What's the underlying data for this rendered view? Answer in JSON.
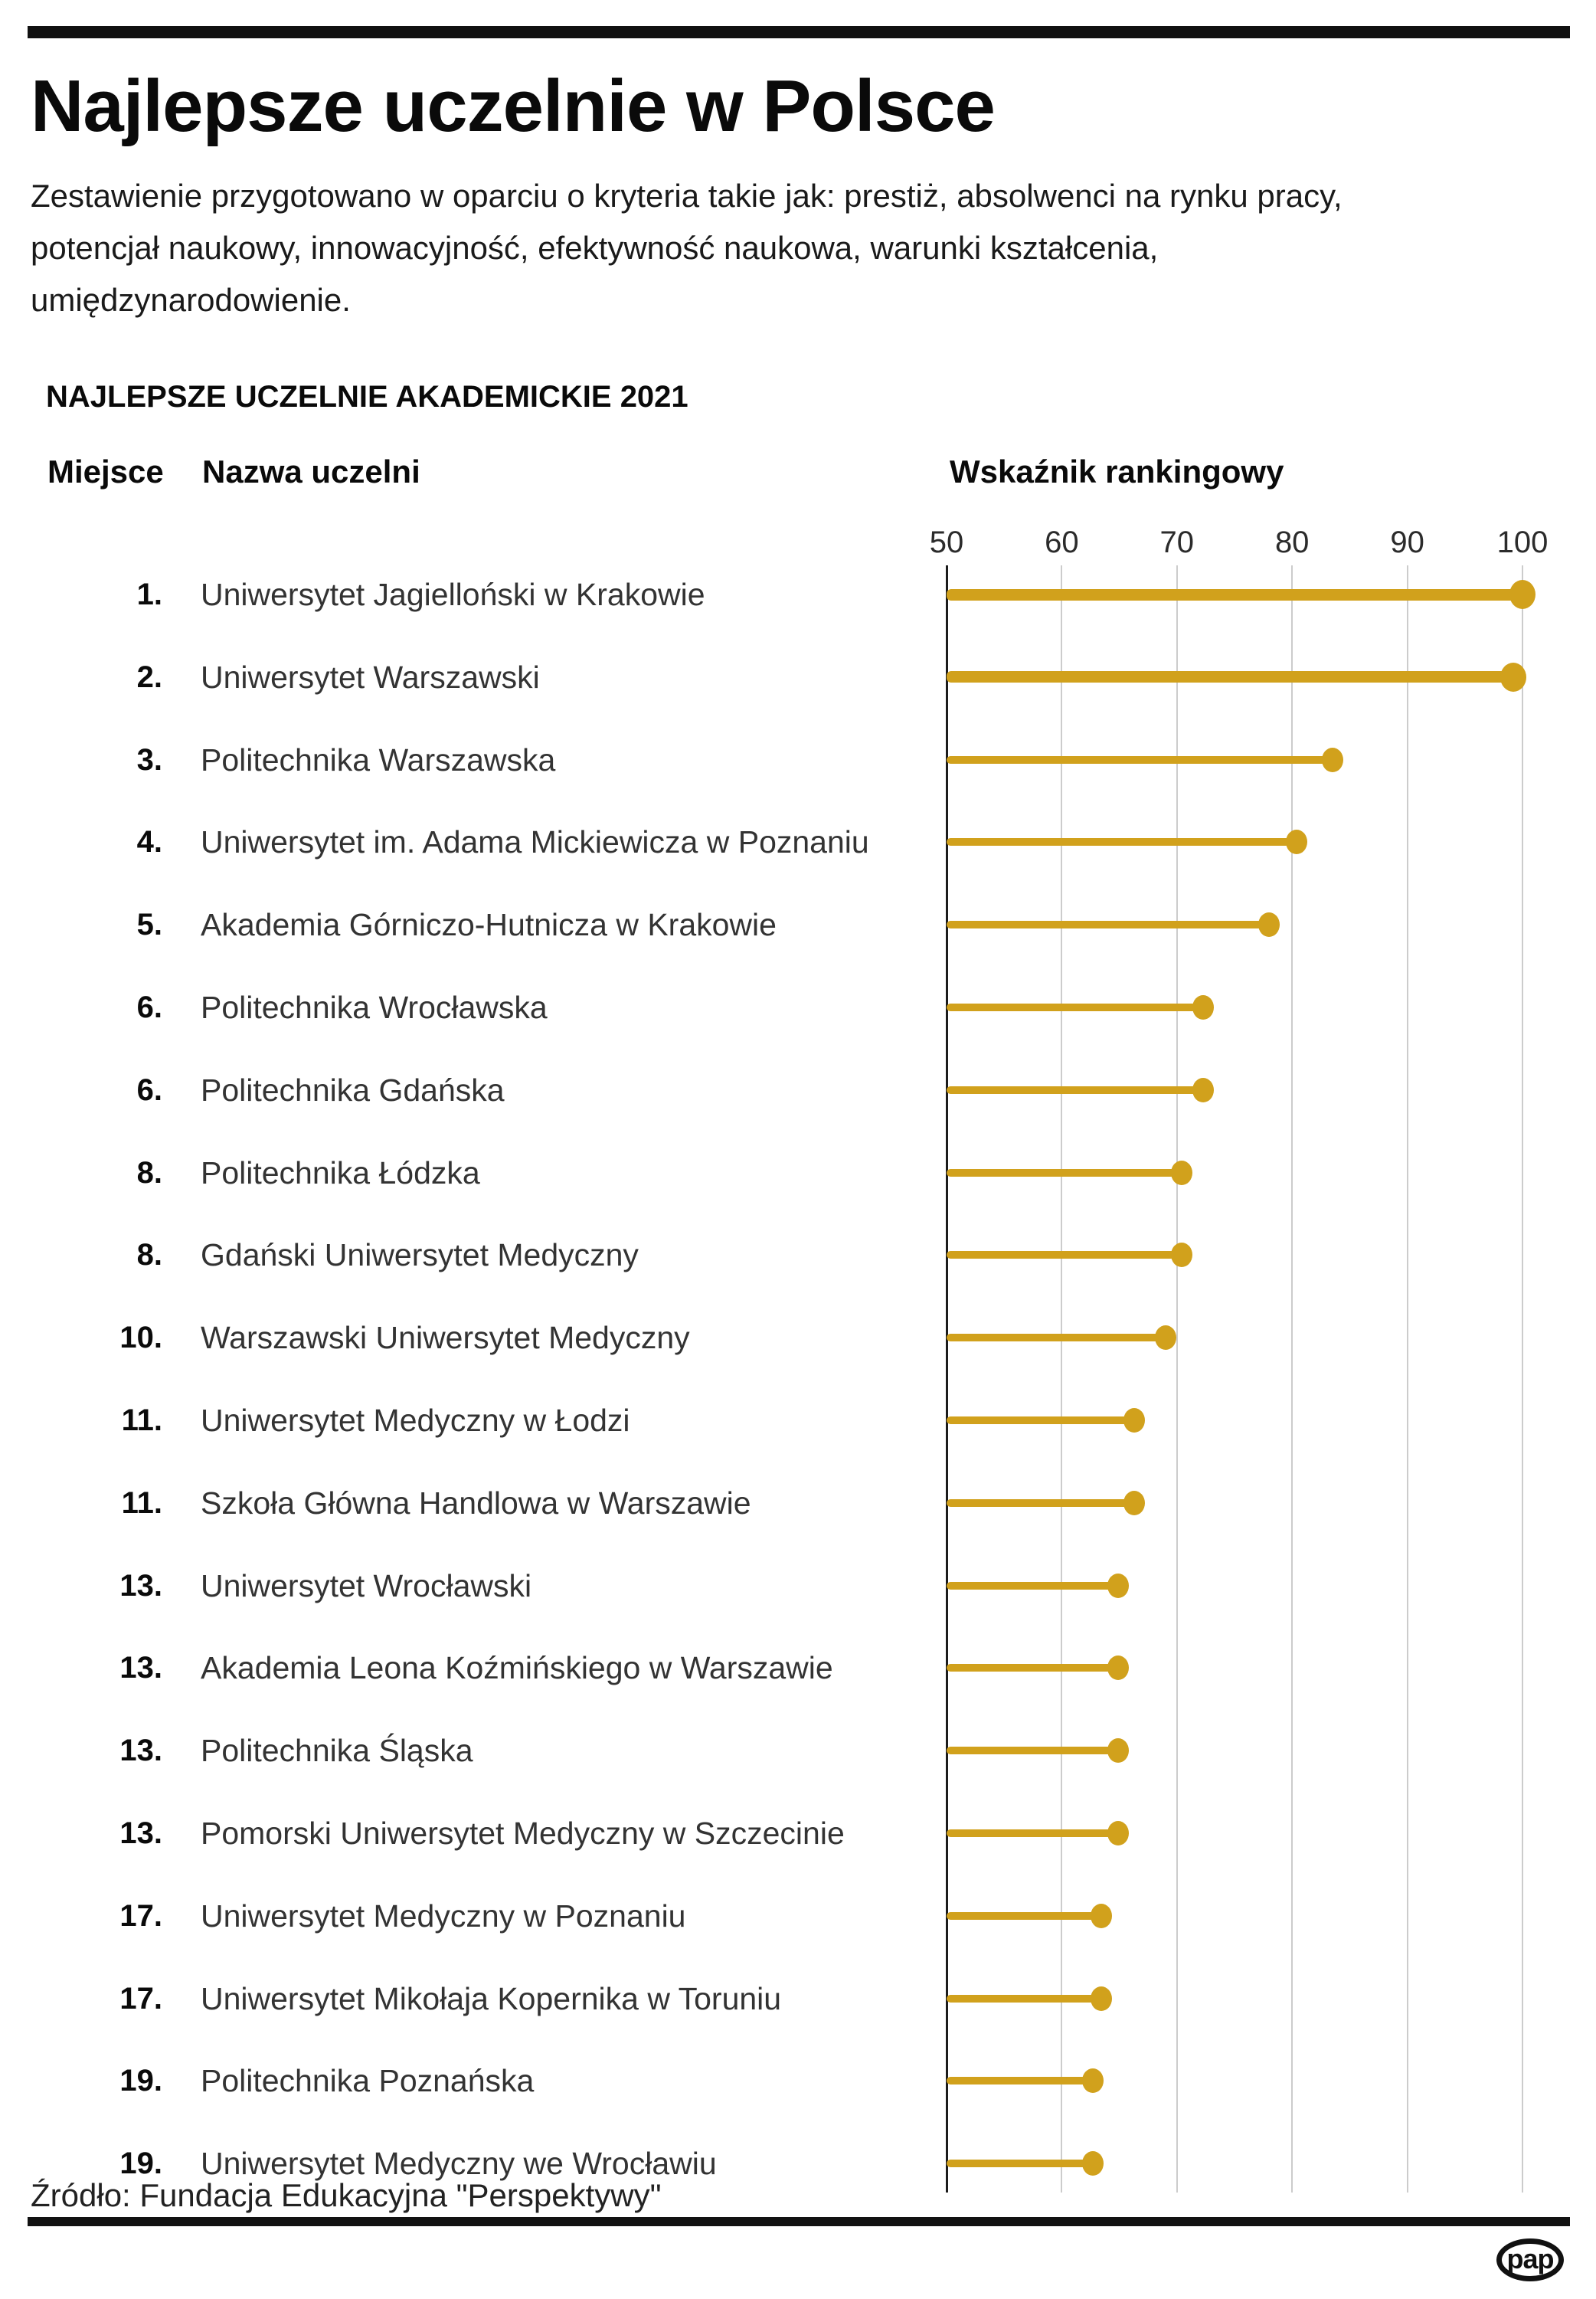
{
  "page": {
    "title": "Najlepsze uczelnie w Polsce",
    "subtitle": "Zestawienie przygotowano w oparciu o kryteria takie jak: prestiż, absolwenci na rynku pracy, potencjał naukowy, innowacyjność, efektywność naukowa, warunki kształcenia, umiędzynarodowienie.",
    "section_header": "NAJLEPSZE UCZELNIE AKADEMICKIE 2021",
    "source": "Źródło: Fundacja Edukacyjna \"Perspektywy\"",
    "logo_text": "pap"
  },
  "table": {
    "col_rank": "Miejsce",
    "col_name": "Nazwa uczelni",
    "col_value": "Wskaźnik rankingowy"
  },
  "chart_data": {
    "type": "bar",
    "subtype": "horizontal-lollipop",
    "xlabel": "Wskaźnik rankingowy",
    "xlim": [
      50,
      100
    ],
    "x_ticks": [
      50,
      60,
      70,
      80,
      90,
      100
    ],
    "grid": true,
    "accent_color": "#D1A11C",
    "gridline_color": "#cccccc",
    "axis_color": "#1c1c1c",
    "rows": [
      {
        "rank": "1.",
        "name": "Uniwersytet Jagielloński w Krakowie",
        "value": 100.0
      },
      {
        "rank": "2.",
        "name": "Uniwersytet Warszawski",
        "value": 99.2
      },
      {
        "rank": "3.",
        "name": "Politechnika Warszawska",
        "value": 83.5
      },
      {
        "rank": "4.",
        "name": "Uniwersytet im. Adama Mickiewicza w Poznaniu",
        "value": 80.4
      },
      {
        "rank": "5.",
        "name": "Akademia Górniczo-Hutnicza w Krakowie",
        "value": 78.0
      },
      {
        "rank": "6.",
        "name": "Politechnika Wrocławska",
        "value": 72.3
      },
      {
        "rank": "6.",
        "name": "Politechnika Gdańska",
        "value": 72.3
      },
      {
        "rank": "8.",
        "name": "Politechnika Łódzka",
        "value": 70.4
      },
      {
        "rank": "8.",
        "name": "Gdański Uniwersytet Medyczny",
        "value": 70.4
      },
      {
        "rank": "10.",
        "name": "Warszawski Uniwersytet Medyczny",
        "value": 69.0
      },
      {
        "rank": "11.",
        "name": "Uniwersytet Medyczny w Łodzi",
        "value": 66.3
      },
      {
        "rank": "11.",
        "name": "Szkoła Główna Handlowa w Warszawie",
        "value": 66.3
      },
      {
        "rank": "13.",
        "name": "Uniwersytet Wrocławski",
        "value": 64.9
      },
      {
        "rank": "13.",
        "name": "Akademia Leona Koźmińskiego w Warszawie",
        "value": 64.9
      },
      {
        "rank": "13.",
        "name": "Politechnika Śląska",
        "value": 64.9
      },
      {
        "rank": "13.",
        "name": "Pomorski Uniwersytet Medyczny w Szczecinie",
        "value": 64.9
      },
      {
        "rank": "17.",
        "name": "Uniwersytet Medyczny w Poznaniu",
        "value": 63.4
      },
      {
        "rank": "17.",
        "name": "Uniwersytet Mikołaja Kopernika w Toruniu",
        "value": 63.4
      },
      {
        "rank": "19.",
        "name": "Politechnika Poznańska",
        "value": 62.7
      },
      {
        "rank": "19.",
        "name": "Uniwersytet Medyczny we Wrocławiu",
        "value": 62.7
      }
    ]
  }
}
